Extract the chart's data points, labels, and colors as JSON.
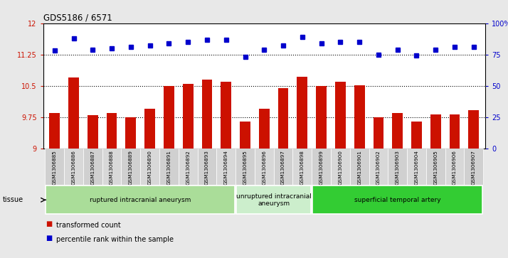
{
  "title": "GDS5186 / 6571",
  "samples": [
    "GSM1306885",
    "GSM1306886",
    "GSM1306887",
    "GSM1306888",
    "GSM1306889",
    "GSM1306890",
    "GSM1306891",
    "GSM1306892",
    "GSM1306893",
    "GSM1306894",
    "GSM1306895",
    "GSM1306896",
    "GSM1306897",
    "GSM1306898",
    "GSM1306899",
    "GSM1306900",
    "GSM1306901",
    "GSM1306902",
    "GSM1306903",
    "GSM1306904",
    "GSM1306905",
    "GSM1306906",
    "GSM1306907"
  ],
  "bar_values": [
    9.85,
    10.7,
    9.8,
    9.85,
    9.75,
    9.95,
    10.5,
    10.55,
    10.65,
    10.6,
    9.65,
    9.95,
    10.45,
    10.72,
    10.5,
    10.6,
    10.52,
    9.75,
    9.85,
    9.65,
    9.82,
    9.82,
    9.92
  ],
  "dot_values": [
    78,
    88,
    79,
    80,
    81,
    82,
    84,
    85,
    87,
    87,
    73,
    79,
    82,
    89,
    84,
    85,
    85,
    75,
    79,
    74,
    79,
    81,
    81
  ],
  "ylim_left": [
    9,
    12
  ],
  "ylim_right": [
    0,
    100
  ],
  "yticks_left": [
    9,
    9.75,
    10.5,
    11.25,
    12
  ],
  "yticks_right": [
    0,
    25,
    50,
    75,
    100
  ],
  "ytick_labels_left": [
    "9",
    "9.75",
    "10.5",
    "11.25",
    "12"
  ],
  "ytick_labels_right": [
    "0",
    "25",
    "50",
    "75",
    "100%"
  ],
  "hlines": [
    9.75,
    10.5,
    11.25
  ],
  "bar_color": "#cc1100",
  "dot_color": "#0000cc",
  "groups": [
    {
      "label": "ruptured intracranial aneurysm",
      "start": 0,
      "end": 10,
      "color": "#aadd99"
    },
    {
      "label": "unruptured intracranial\naneurysm",
      "start": 10,
      "end": 14,
      "color": "#cceecc"
    },
    {
      "label": "superficial temporal artery",
      "start": 14,
      "end": 23,
      "color": "#33cc33"
    }
  ],
  "legend_label_bar": "transformed count",
  "legend_label_dot": "percentile rank within the sample",
  "tissue_label": "tissue",
  "background_color": "#e8e8e8",
  "plot_bg_color": "#ffffff",
  "xtick_bg_color": "#d4d4d4"
}
